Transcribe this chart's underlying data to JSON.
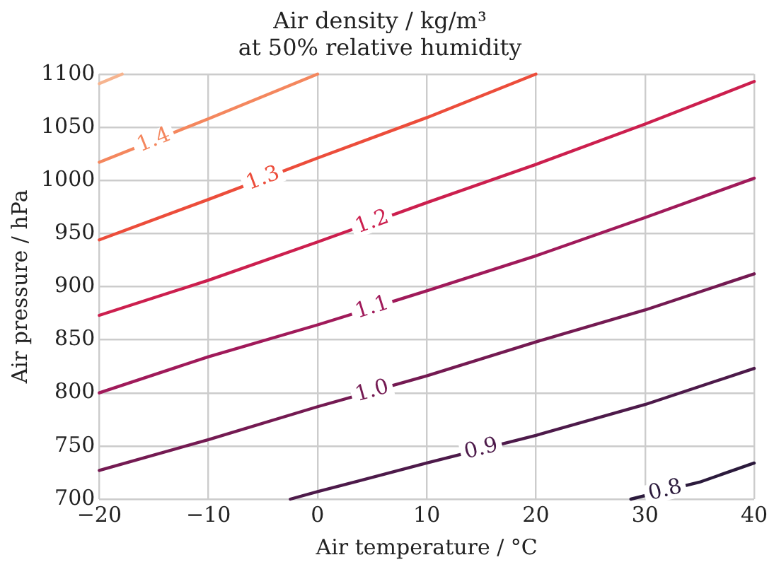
{
  "chart_data": {
    "type": "line",
    "title": "Air density / kg/m³",
    "subtitle": "at 50% relative humidity",
    "xlabel": "Air temperature / °C",
    "ylabel": "Air pressure / hPa",
    "xlim": [
      -20,
      40
    ],
    "xticks": [
      {
        "value": -20,
        "label": "−20"
      },
      {
        "value": -10,
        "label": "−10"
      },
      0,
      10,
      20,
      30,
      40
    ],
    "ylim": [
      700,
      1100
    ],
    "yticks": [
      700,
      750,
      800,
      850,
      900,
      950,
      1000,
      1050,
      1100
    ],
    "grid": true,
    "legend": false,
    "marker": "none",
    "line_style": "solid",
    "series": [
      {
        "color": "#f6b48f",
        "x": [
          -20,
          -17.9
        ],
        "values": [
          1091,
          1100
        ]
      },
      {
        "name": "1.4",
        "color": "#f4875e",
        "x": [
          -20,
          -10,
          0
        ],
        "values": [
          1017,
          1058,
          1100
        ]
      },
      {
        "name": "1.3",
        "color": "#ec4d3b",
        "x": [
          -20,
          -10,
          0,
          10,
          20
        ],
        "values": [
          944,
          982,
          1021,
          1059,
          1100
        ]
      },
      {
        "name": "1.2",
        "color": "#cc1f4e",
        "x": [
          -20,
          -10,
          0,
          10,
          20,
          30,
          40
        ],
        "values": [
          873,
          906,
          942,
          979,
          1015,
          1053,
          1093
        ]
      },
      {
        "name": "1.1",
        "color": "#a01a5a",
        "x": [
          -20,
          -10,
          0,
          10,
          20,
          30,
          40
        ],
        "values": [
          800,
          834,
          864,
          896,
          929,
          965,
          1002
        ]
      },
      {
        "name": "1.0",
        "color": "#741a52",
        "x": [
          -20,
          -10,
          0,
          10,
          20,
          30,
          40
        ],
        "values": [
          727,
          756,
          787,
          816,
          848,
          878,
          912
        ]
      },
      {
        "name": "0.9",
        "color": "#4d1a4a",
        "x": [
          -2.5,
          0,
          10,
          20,
          30,
          40
        ],
        "values": [
          700,
          707,
          734,
          760,
          789,
          823
        ]
      },
      {
        "name": "0.8",
        "color": "#2b1a3c",
        "x": [
          28.7,
          35,
          40
        ],
        "values": [
          700,
          716,
          734
        ]
      }
    ]
  }
}
